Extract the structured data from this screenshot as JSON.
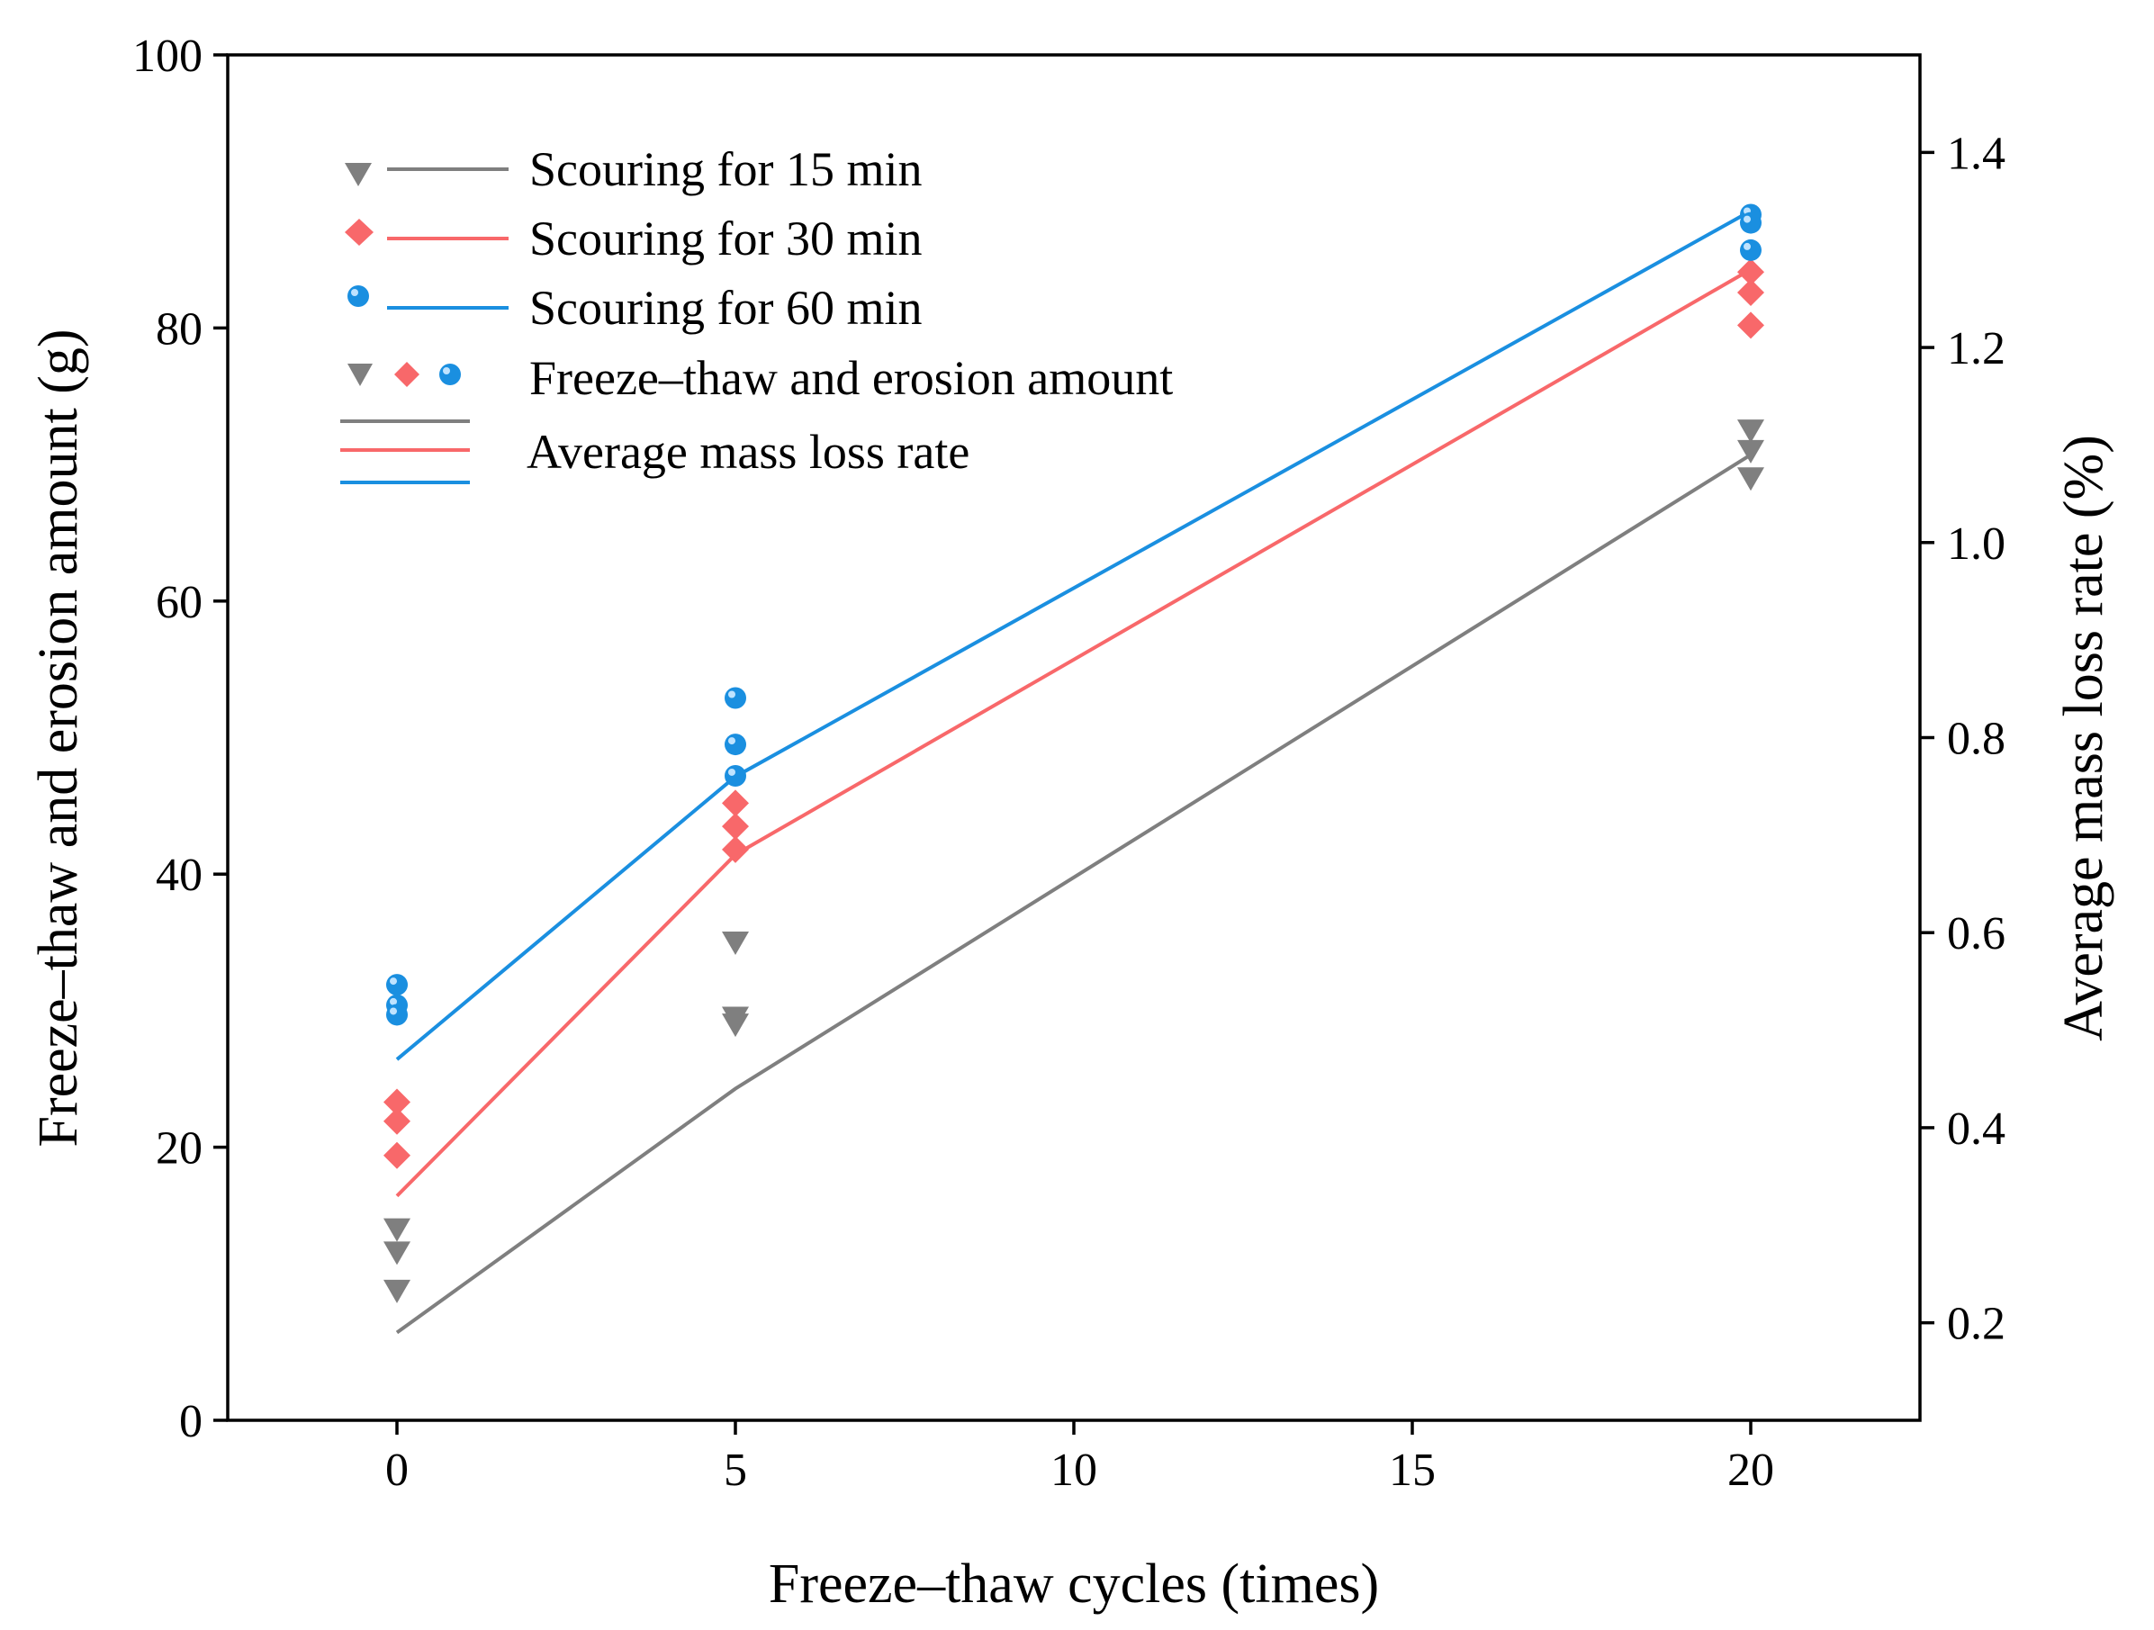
{
  "chart_data": {
    "type": "scatter+line",
    "title": "",
    "xlabel": "Freeze–thaw cycles (times)",
    "ylabel_left": "Freeze–thaw and erosion amount (g)",
    "ylabel_right": "Average mass loss rate (%)",
    "xlim": [
      -2.5,
      22.5
    ],
    "ylim_left": [
      0,
      100
    ],
    "ylim_right": [
      0.1,
      1.5
    ],
    "x_ticks": [
      0,
      5,
      10,
      15,
      20
    ],
    "y_left_ticks": [
      0,
      20,
      40,
      60,
      80,
      100
    ],
    "y_right_ticks": [
      0.2,
      0.4,
      0.6,
      0.8,
      1.0,
      1.2,
      1.4
    ],
    "y_right_tick_labels": [
      "0.2",
      "0.4",
      "0.6",
      "0.8",
      "1.0",
      "1.2",
      "1.4"
    ],
    "grid": false,
    "legend_position": "top-left",
    "series": [
      {
        "name": "Scouring for 15 min",
        "color": "#7f7f7f",
        "marker": "triangle-down",
        "points": [
          {
            "x": 0,
            "y": 14.0
          },
          {
            "x": 0,
            "y": 12.3
          },
          {
            "x": 0,
            "y": 9.5
          },
          {
            "x": 5,
            "y": 35.0
          },
          {
            "x": 5,
            "y": 29.5
          },
          {
            "x": 5,
            "y": 29.0
          },
          {
            "x": 20,
            "y": 72.5
          },
          {
            "x": 20,
            "y": 71.0
          },
          {
            "x": 20,
            "y": 69.0
          }
        ],
        "line": {
          "x": [
            0,
            5,
            20
          ],
          "y": [
            0.19,
            0.44,
            1.09
          ]
        }
      },
      {
        "name": "Scouring for 30 min",
        "color": "#f8686a",
        "marker": "diamond",
        "points": [
          {
            "x": 0,
            "y": 23.3
          },
          {
            "x": 0,
            "y": 21.9
          },
          {
            "x": 0,
            "y": 19.4
          },
          {
            "x": 5,
            "y": 45.2
          },
          {
            "x": 5,
            "y": 43.5
          },
          {
            "x": 5,
            "y": 41.8
          },
          {
            "x": 20,
            "y": 84.1
          },
          {
            "x": 20,
            "y": 82.6
          },
          {
            "x": 20,
            "y": 80.2
          }
        ],
        "line": {
          "x": [
            0,
            5,
            20
          ],
          "y": [
            0.33,
            0.68,
            1.28
          ]
        }
      },
      {
        "name": "Scouring for 60 min",
        "color": "#1a8fe0",
        "marker": "circle",
        "points": [
          {
            "x": 0,
            "y": 31.9
          },
          {
            "x": 0,
            "y": 30.4
          },
          {
            "x": 0,
            "y": 29.7
          },
          {
            "x": 5,
            "y": 52.9
          },
          {
            "x": 5,
            "y": 49.5
          },
          {
            "x": 5,
            "y": 47.2
          },
          {
            "x": 20,
            "y": 88.3
          },
          {
            "x": 20,
            "y": 87.7
          },
          {
            "x": 20,
            "y": 85.7
          }
        ],
        "line": {
          "x": [
            0,
            5,
            20
          ],
          "y": [
            0.47,
            0.76,
            1.34
          ]
        }
      }
    ],
    "legend_entries": [
      "Scouring for 15 min",
      "Scouring for 30 min",
      "Scouring for 60 min",
      "Freeze–thaw and erosion amount",
      "Average mass loss rate"
    ]
  }
}
